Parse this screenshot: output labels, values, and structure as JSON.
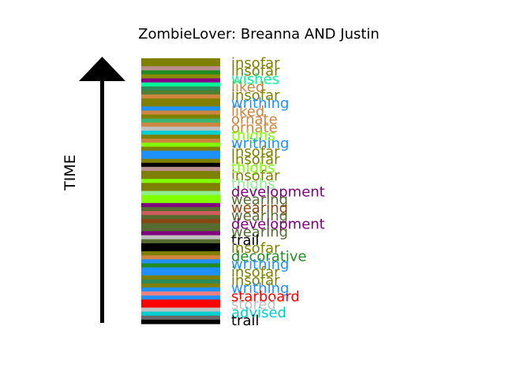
{
  "chart_data": {
    "type": "bar",
    "title": "ZombieLover: Breanna AND Justin",
    "ylabel": "TIME",
    "bands": [
      {
        "color": "#808000"
      },
      {
        "color": "#808000"
      },
      {
        "color": "#bc8f8f"
      },
      {
        "color": "#228b22"
      },
      {
        "color": "#8b8b00"
      },
      {
        "color": "#8b008b"
      },
      {
        "color": "#00fa9a"
      },
      {
        "color": "#2e8b57"
      },
      {
        "color": "#4f7f2f"
      },
      {
        "color": "#cd853f"
      },
      {
        "color": "#808000"
      },
      {
        "color": "#808000"
      },
      {
        "color": "#1e90ff"
      },
      {
        "color": "#cd853f"
      },
      {
        "color": "#808000"
      },
      {
        "color": "#3cb371"
      },
      {
        "color": "#cd853f"
      },
      {
        "color": "#c0c0c0"
      },
      {
        "color": "#00ced1"
      },
      {
        "color": "#808000"
      },
      {
        "color": "#cd853f"
      },
      {
        "color": "#7fff00"
      },
      {
        "color": "#808000"
      },
      {
        "color": "#1e90ff"
      },
      {
        "color": "#1e90ff"
      },
      {
        "color": "#808000"
      },
      {
        "color": "#000000"
      },
      {
        "color": "#bc8f8f"
      },
      {
        "color": "#808000"
      },
      {
        "color": "#808000"
      },
      {
        "color": "#7fff00"
      },
      {
        "color": "#808000"
      },
      {
        "color": "#808000"
      },
      {
        "color": "#90ee90"
      },
      {
        "color": "#7fff00"
      },
      {
        "color": "#7fff00"
      },
      {
        "color": "#800080"
      },
      {
        "color": "#556b2f"
      },
      {
        "color": "#cd5c5c"
      },
      {
        "color": "#556b2f"
      },
      {
        "color": "#8b4513"
      },
      {
        "color": "#556b2f"
      },
      {
        "color": "#556b2f"
      },
      {
        "color": "#800080"
      },
      {
        "color": "#c0c0c0"
      },
      {
        "color": "#556b2f"
      },
      {
        "color": "#000000"
      },
      {
        "color": "#000000"
      },
      {
        "color": "#808000"
      },
      {
        "color": "#cd853f"
      },
      {
        "color": "#1e90ff"
      },
      {
        "color": "#228b22"
      },
      {
        "color": "#1e90ff"
      },
      {
        "color": "#1e90ff"
      },
      {
        "color": "#808000"
      },
      {
        "color": "#2e8b57"
      },
      {
        "color": "#808000"
      },
      {
        "color": "#1e90ff"
      },
      {
        "color": "#f08080"
      },
      {
        "color": "#1e90ff"
      },
      {
        "color": "#ff0000"
      },
      {
        "color": "#ff0000"
      },
      {
        "color": "#c0c0c0"
      },
      {
        "color": "#00ced1"
      },
      {
        "color": "#696969"
      },
      {
        "color": "#000000"
      }
    ],
    "labels": [
      {
        "text": "insofar",
        "color": "#808000"
      },
      {
        "text": "insofar",
        "color": "#808000"
      },
      {
        "text": "wishes",
        "color": "#00fa9a"
      },
      {
        "text": "liked",
        "color": "#cd853f"
      },
      {
        "text": "insofar",
        "color": "#808000"
      },
      {
        "text": "writhing",
        "color": "#1e90ff"
      },
      {
        "text": "liked",
        "color": "#cd853f"
      },
      {
        "text": "ornate",
        "color": "#cd853f"
      },
      {
        "text": "ornate",
        "color": "#cd853f"
      },
      {
        "text": "thighs",
        "color": "#7fff00"
      },
      {
        "text": "writhing",
        "color": "#1e90ff"
      },
      {
        "text": "insofar",
        "color": "#808000"
      },
      {
        "text": "insofar",
        "color": "#808000"
      },
      {
        "text": "thighs",
        "color": "#7fff00"
      },
      {
        "text": "insofar",
        "color": "#808000"
      },
      {
        "text": "thighs",
        "color": "#90ee90"
      },
      {
        "text": "development",
        "color": "#800080"
      },
      {
        "text": "wearing",
        "color": "#556b2f"
      },
      {
        "text": "wearing",
        "color": "#8b4513"
      },
      {
        "text": "wearing",
        "color": "#556b2f"
      },
      {
        "text": "development",
        "color": "#800080"
      },
      {
        "text": "wearing",
        "color": "#556b2f"
      },
      {
        "text": "trail",
        "color": "#000000"
      },
      {
        "text": "insofar",
        "color": "#808000"
      },
      {
        "text": "decorative",
        "color": "#228b22"
      },
      {
        "text": "writhing",
        "color": "#1e90ff"
      },
      {
        "text": "insofar",
        "color": "#808000"
      },
      {
        "text": "insofar",
        "color": "#808000"
      },
      {
        "text": "writhing",
        "color": "#1e90ff"
      },
      {
        "text": "starboard",
        "color": "#ff0000"
      },
      {
        "text": "stored",
        "color": "#c0c0c0"
      },
      {
        "text": "advised",
        "color": "#00ced1"
      },
      {
        "text": "trail",
        "color": "#000000"
      }
    ]
  }
}
